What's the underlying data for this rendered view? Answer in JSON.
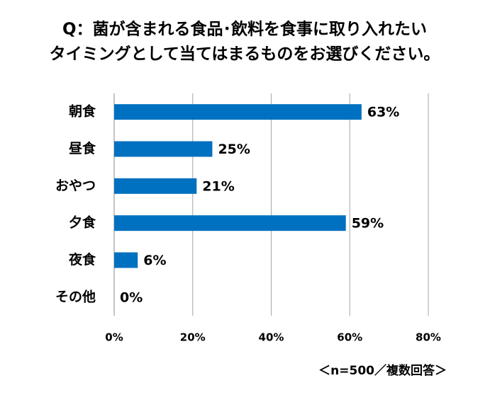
{
  "chart_data": {
    "type": "bar",
    "orientation": "horizontal",
    "title": [
      "Q：菌が含まれる食品･飲料を食事に取り入れたい",
      "タイミングとして当てはまるものをお選びください。"
    ],
    "categories": [
      "朝食",
      "昼食",
      "おやつ",
      "夕食",
      "夜食",
      "その他"
    ],
    "values": [
      63,
      25,
      21,
      59,
      6,
      0
    ],
    "value_labels": [
      "63%",
      "25%",
      "21%",
      "59%",
      "6%",
      "0%"
    ],
    "color": "#0070c0",
    "xlim": [
      0,
      80
    ],
    "xticks": [
      {
        "value": 0,
        "label": "0%"
      },
      {
        "value": 20,
        "label": "20%"
      },
      {
        "value": 40,
        "label": "40%"
      },
      {
        "value": 60,
        "label": "60%"
      },
      {
        "value": 80,
        "label": "80%"
      }
    ],
    "grid": true,
    "note": "＜n=500／複数回答＞"
  }
}
